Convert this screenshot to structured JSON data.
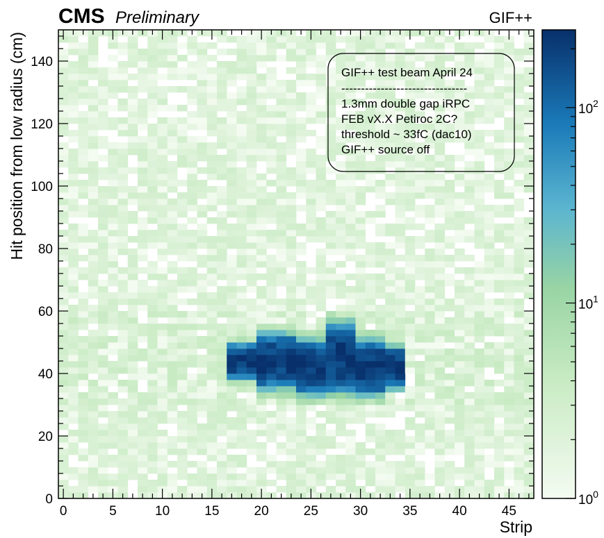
{
  "header": {
    "experiment": "CMS",
    "status": "Preliminary",
    "facility": "GIF++"
  },
  "annotation": {
    "lines": [
      "GIF++ test beam April 24",
      "--------------------------------",
      "1.3mm double gap iRPC",
      "FEB vX.X Petiroc 2C?",
      "threshold ~ 33fC (dac10)",
      "GIF++ source off"
    ]
  },
  "colors": {
    "low": "#f4fbf1",
    "mid_low": "#a8dba6",
    "mid": "#5bb5d0",
    "mid_high": "#1a7ab8",
    "high": "#08306b"
  },
  "chart_data": {
    "type": "heatmap",
    "xlabel": "Strip",
    "ylabel": "Hit position from low radius (cm)",
    "xlim": [
      -0.5,
      47.5
    ],
    "ylim": [
      0,
      150
    ],
    "xticks": [
      0,
      5,
      10,
      15,
      20,
      25,
      30,
      35,
      40,
      45
    ],
    "yticks": [
      0,
      20,
      40,
      60,
      80,
      100,
      120,
      140
    ],
    "zscale": "log",
    "zlim": [
      1,
      250
    ],
    "colorbar_ticks": [
      {
        "value": 1,
        "label": "10",
        "exp": "0"
      },
      {
        "value": 10,
        "label": "10",
        "exp": "1"
      },
      {
        "value": 100,
        "label": "10",
        "exp": "2"
      }
    ],
    "bins": {
      "x_count": 48,
      "y_count": 75,
      "x_width": 1,
      "y_width": 2
    },
    "background_level": 1.6,
    "hotspot": {
      "x_range": [
        17,
        35
      ],
      "y_range": [
        32,
        56
      ],
      "center_y": 43,
      "peak": 220,
      "segments": [
        {
          "x_from": 17,
          "x_to": 20,
          "y_center": 44,
          "y_half": 5
        },
        {
          "x_from": 20,
          "x_to": 24,
          "y_center": 44,
          "y_half": 8
        },
        {
          "x_from": 24,
          "x_to": 27,
          "y_center": 42,
          "y_half": 8
        },
        {
          "x_from": 27,
          "x_to": 30,
          "y_center": 45,
          "y_half": 10
        },
        {
          "x_from": 30,
          "x_to": 33,
          "y_center": 42,
          "y_half": 8
        },
        {
          "x_from": 33,
          "x_to": 35,
          "y_center": 42,
          "y_half": 6
        }
      ]
    },
    "grid": false,
    "legend": "none"
  }
}
